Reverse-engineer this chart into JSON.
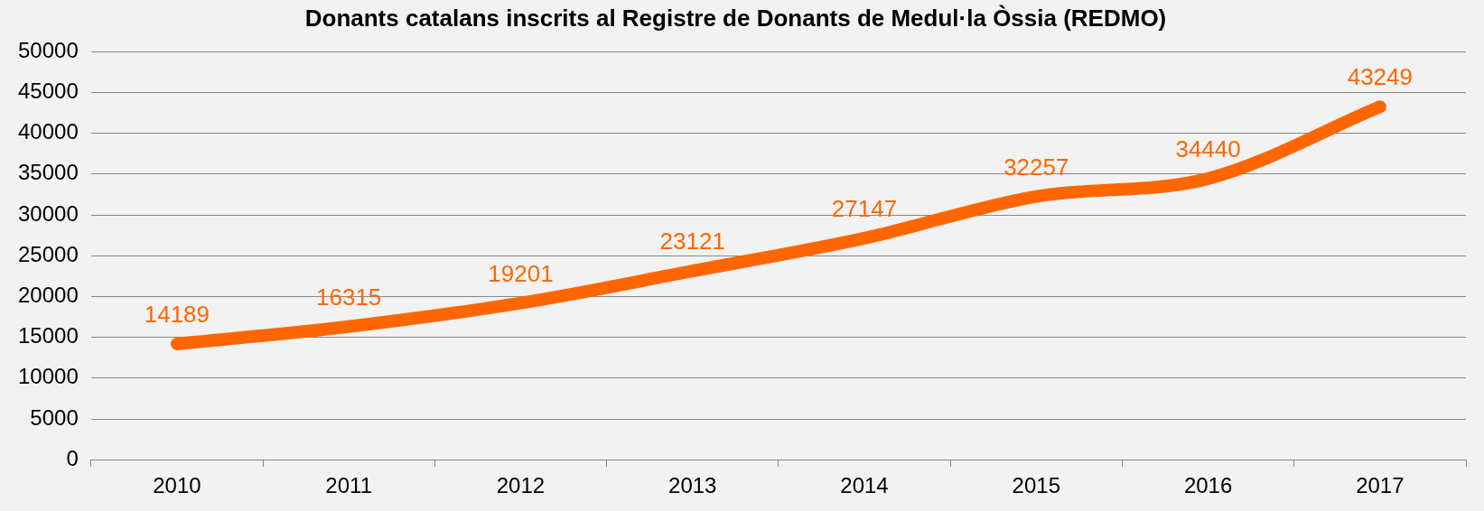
{
  "chart_data": {
    "type": "line",
    "title": "Donants catalans inscrits al Registre de Donants de Medul·la Òssia (REDMO)",
    "categories": [
      "2010",
      "2011",
      "2012",
      "2013",
      "2014",
      "2015",
      "2016",
      "2017"
    ],
    "series": [
      {
        "color": "#ff6600",
        "values": [
          14189,
          16315,
          19201,
          23121,
          27147,
          32257,
          34440,
          43249
        ]
      }
    ],
    "ylim": [
      0,
      50000
    ],
    "yticks": [
      0,
      5000,
      10000,
      15000,
      20000,
      25000,
      30000,
      35000,
      40000,
      45000,
      50000
    ],
    "grid": "y",
    "legend": false,
    "marker": "none",
    "line_style": "solid",
    "data_labels": true
  }
}
